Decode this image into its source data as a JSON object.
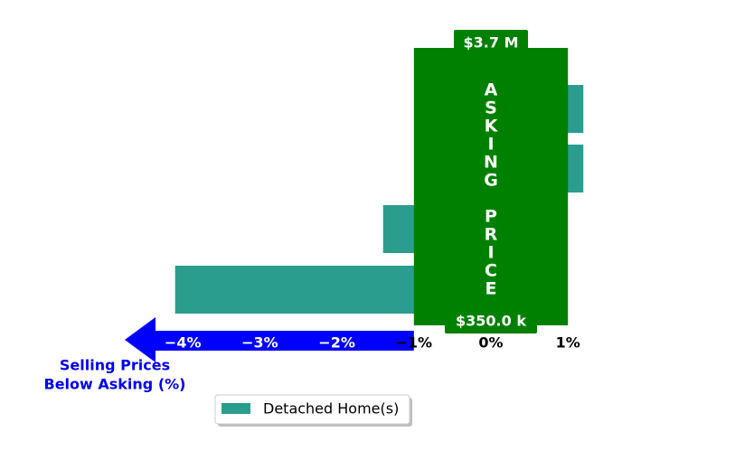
{
  "chart_data": {
    "type": "bar",
    "orientation": "horizontal",
    "categories": [
      "",
      "",
      "",
      ""
    ],
    "series": [
      {
        "name": "Detached Home(s)",
        "color": "#2a9d8f",
        "values": [
          1.2,
          1.2,
          -1.4,
          -4.1
        ]
      }
    ],
    "xlim": [
      -4.3,
      1.2
    ],
    "x_ticks": [
      -4,
      -3,
      -2,
      -1,
      0,
      1
    ],
    "x_tick_labels": [
      "−4%",
      "−3%",
      "−2%",
      "−1%",
      "0%",
      "1%"
    ],
    "xlabel": "Selling Prices\nBelow Asking (%)",
    "asking_band": {
      "from": -1,
      "to": 1,
      "color": "#008000"
    },
    "asking_label": "ASKING PRICE",
    "price_top": "$3.7 M",
    "price_bottom": "$350.0 k",
    "arrow_color": "#0000ff",
    "grid": false,
    "legend_position": "bottom-center"
  }
}
